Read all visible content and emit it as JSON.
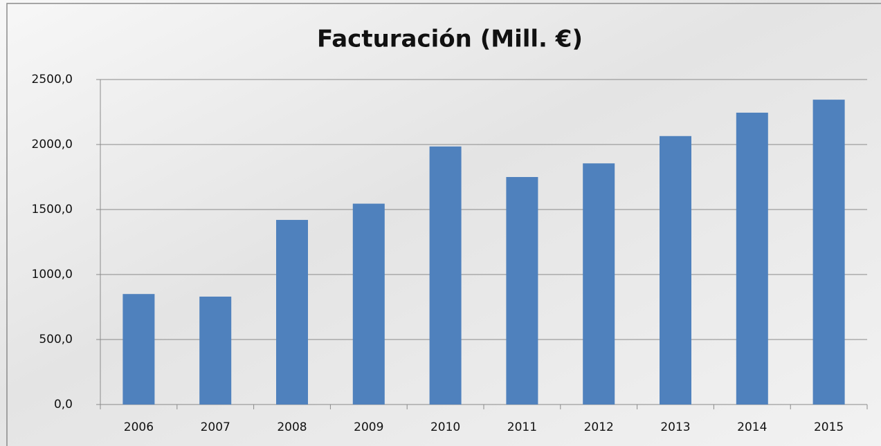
{
  "chart_data": {
    "type": "bar",
    "title": "Facturación (Mill. €)",
    "categories": [
      "2006",
      "2007",
      "2008",
      "2009",
      "2010",
      "2011",
      "2012",
      "2013",
      "2014",
      "2015"
    ],
    "values": [
      850,
      830,
      1420,
      1545,
      1985,
      1750,
      1855,
      2065,
      2245,
      2345
    ],
    "color": "#4f81bd",
    "ylim": [
      0,
      2500
    ],
    "yticks": [
      {
        "value": 0,
        "label": "0,0"
      },
      {
        "value": 500,
        "label": "500,0"
      },
      {
        "value": 1000,
        "label": "1000,0"
      },
      {
        "value": 1500,
        "label": "1500,0"
      },
      {
        "value": 2000,
        "label": "2000,0"
      },
      {
        "value": 2500,
        "label": "2500,0"
      }
    ],
    "grid": true
  }
}
